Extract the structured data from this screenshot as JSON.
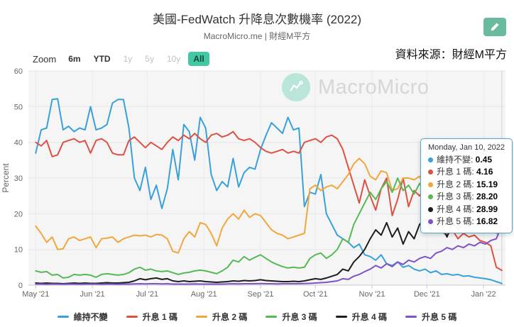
{
  "header": {
    "title": "美國-FedWatch 升降息次數機率 (2022)",
    "subtitle": "MacroMicro.me | 財經M平方",
    "source_note": "資料來源：財經M平方"
  },
  "toolbar": {
    "zoom_label": "Zoom",
    "ranges": [
      {
        "label": "6m",
        "state": "enabled"
      },
      {
        "label": "YTD",
        "state": "enabled"
      },
      {
        "label": "1y",
        "state": "disabled"
      },
      {
        "label": "5y",
        "state": "disabled"
      },
      {
        "label": "10y",
        "state": "disabled"
      },
      {
        "label": "All",
        "state": "selected"
      }
    ]
  },
  "watermark": {
    "text": "MacroMicro"
  },
  "tooltip": {
    "date": "Monday, Jan 10, 2022",
    "rows": [
      {
        "series": "維持不變",
        "value": "0.45"
      },
      {
        "series": "升息 1 碼",
        "value": "4.16"
      },
      {
        "series": "升息 2 碼",
        "value": "15.19"
      },
      {
        "series": "升息 3 碼",
        "value": "28.20"
      },
      {
        "series": "升息 4 碼",
        "value": "28.99"
      },
      {
        "series": "升息 5 碼",
        "value": "16.82"
      }
    ]
  },
  "colors": {
    "accent_teal": "#42c9a4",
    "edit_button": "#68bb9c",
    "tooltip_border": "#55a6cc",
    "plot_background": "#f5f5f6",
    "gridline": "#e6e6e8"
  },
  "chart_data": {
    "type": "line",
    "title": "美國-FedWatch 升降息次數機率 (2022)",
    "ylabel": "Percent",
    "ylim": [
      0,
      60
    ],
    "yticks": [
      0,
      10,
      20,
      30,
      40,
      50,
      60
    ],
    "x_start": "2021-05-01",
    "x_step_days": 3,
    "xlim": [
      -4,
      257
    ],
    "crosshair_day": 255,
    "grid": true,
    "legend_position": "bottom",
    "xticks": {
      "days": [
        0,
        31,
        61,
        92,
        123,
        153,
        184,
        214,
        245
      ],
      "labels": [
        "May '21",
        "Jun '21",
        "Jul '21",
        "Aug '21",
        "Sep '21",
        "Oct '21",
        "Nov '21",
        "Dec '21",
        "Jan '22"
      ]
    },
    "series": [
      {
        "name": "維持不變",
        "color": "#39a1da",
        "values": [
          37,
          43.5,
          44,
          52,
          52.2,
          43.5,
          44.5,
          43,
          44,
          43.5,
          50,
          43.5,
          44,
          45,
          51,
          52,
          52,
          44,
          30,
          26.5,
          33,
          24,
          28,
          21.5,
          27,
          38,
          29.5,
          45,
          43,
          35,
          47,
          44,
          31,
          26.5,
          29,
          27.5,
          35.5,
          27.5,
          31.5,
          33,
          32.5,
          38,
          42,
          45.5,
          44,
          42.5,
          47,
          43.5,
          44,
          22,
          26,
          25.5,
          31,
          20,
          17,
          14,
          13,
          12,
          10.5,
          11.5,
          8.5,
          8,
          7,
          8.5,
          6,
          5.5,
          6.5,
          5,
          5.5,
          4.5,
          4,
          4.5,
          3.5,
          4,
          3,
          3.2,
          2.8,
          3,
          2.5,
          2.6,
          2.2,
          2,
          1.8,
          1.5,
          1,
          0.45
        ]
      },
      {
        "name": "升息 1 碼",
        "color": "#dd5143",
        "values": [
          40,
          39,
          40.5,
          36,
          36.5,
          40,
          40.5,
          41,
          40,
          40.5,
          37,
          40.5,
          41,
          40,
          37,
          36.5,
          36.5,
          40.5,
          41.5,
          40,
          38.5,
          40,
          39,
          38,
          40,
          41.5,
          40.5,
          42,
          41,
          42.5,
          41,
          40,
          42,
          42.5,
          41.5,
          42,
          43,
          41,
          40.5,
          41,
          40,
          38.5,
          37.5,
          37,
          37.5,
          38,
          37,
          37.5,
          37,
          40,
          40.5,
          41,
          40,
          41.5,
          42,
          41,
          38,
          33,
          28,
          23,
          29.5,
          25,
          21,
          27,
          30,
          19.5,
          24,
          30,
          22,
          26.5,
          25,
          27.5,
          22,
          18,
          15,
          14,
          15.5,
          13,
          14.5,
          13.5,
          14,
          12.5,
          12,
          11,
          5,
          4.16
        ]
      },
      {
        "name": "升息 2 碼",
        "color": "#f0a73d",
        "values": [
          16.5,
          14.5,
          12,
          13.5,
          10,
          10.2,
          13,
          13.5,
          12.5,
          13,
          13.5,
          10.5,
          13,
          13.2,
          13.5,
          12,
          13,
          13.5,
          14,
          13.8,
          14,
          13.5,
          14.2,
          14,
          13,
          9.5,
          9,
          13,
          15,
          13.5,
          17.5,
          17,
          14.5,
          11,
          16,
          18.5,
          20,
          18.5,
          21,
          19,
          20,
          19.5,
          17.5,
          15.5,
          14.5,
          14,
          13,
          13.5,
          14,
          14.5,
          27,
          28,
          26.5,
          27.5,
          28,
          27,
          29,
          31,
          34,
          35.5,
          34,
          30.5,
          29.5,
          32,
          31.5,
          26.5,
          27,
          30,
          30,
          29.5,
          30.5,
          28,
          29,
          27,
          26,
          24.5,
          25,
          23.5,
          24,
          23,
          22,
          21,
          19,
          17.5,
          14.5,
          15.19
        ]
      },
      {
        "name": "升息 3 碼",
        "color": "#57b956",
        "values": [
          4,
          3.6,
          3.8,
          2.8,
          3,
          2,
          2.2,
          3,
          2.8,
          3,
          2.8,
          2.2,
          3,
          3.2,
          3,
          2.8,
          3,
          3.5,
          4.5,
          5,
          4.2,
          4.5,
          4,
          3.8,
          4,
          3.5,
          3,
          3.4,
          3.6,
          4,
          4.2,
          4,
          3.6,
          3.2,
          4,
          5,
          7,
          6.5,
          8,
          7,
          7.8,
          8.5,
          7.5,
          6.5,
          5.8,
          5.2,
          4.8,
          5,
          4.8,
          5,
          7.5,
          8.5,
          9,
          7.5,
          8.5,
          10,
          13,
          12,
          17,
          20,
          23,
          26,
          24,
          27,
          29,
          26,
          30,
          26.5,
          28,
          25.5,
          28.5,
          26,
          28,
          27,
          25.5,
          27.5,
          26.5,
          27.5,
          26,
          28,
          27,
          28,
          27,
          28.5,
          29,
          28.2
        ]
      },
      {
        "name": "升息 4 碼",
        "color": "#1d1d1f",
        "values": [
          0.6,
          0.5,
          0.6,
          0.5,
          0.5,
          0.4,
          0.5,
          0.6,
          0.5,
          0.6,
          0.5,
          0.5,
          0.6,
          0.7,
          0.6,
          0.6,
          0.7,
          0.8,
          1.2,
          1.8,
          1.5,
          1.8,
          2,
          1.6,
          1.8,
          1.2,
          1,
          1.2,
          1,
          1.1,
          1.2,
          1,
          0.9,
          0.8,
          0.9,
          1,
          1.2,
          1.1,
          1.3,
          1.2,
          1.3,
          1.5,
          1.3,
          1.2,
          1.1,
          1,
          1,
          1.1,
          1,
          1.2,
          1.5,
          1.8,
          1.6,
          2,
          2.5,
          3,
          4.5,
          4,
          6.5,
          8,
          10,
          13,
          15.5,
          14,
          17.5,
          13.5,
          16,
          11.5,
          15,
          13,
          17,
          18.5,
          15.5,
          19,
          17,
          13.5,
          17.5,
          16,
          18,
          16.5,
          18,
          19.5,
          21,
          23,
          29.5,
          28.99
        ]
      },
      {
        "name": "升息 5 碼",
        "color": "#7d54c5",
        "values": [
          0.3,
          0.3,
          0.25,
          0.3,
          0.3,
          0.25,
          0.3,
          0.3,
          0.25,
          0.3,
          0.3,
          0.3,
          0.25,
          0.3,
          0.3,
          0.25,
          0.3,
          0.3,
          0.35,
          0.4,
          0.35,
          0.4,
          0.4,
          0.35,
          0.4,
          0.3,
          0.3,
          0.3,
          0.3,
          0.35,
          0.3,
          0.3,
          0.3,
          0.3,
          0.3,
          0.35,
          0.4,
          0.35,
          0.4,
          0.4,
          0.4,
          0.45,
          0.4,
          0.4,
          0.35,
          0.4,
          0.4,
          0.4,
          0.4,
          0.45,
          0.5,
          0.6,
          0.7,
          0.8,
          1,
          1.2,
          1.8,
          1.6,
          2.5,
          3,
          3.8,
          4.5,
          5.5,
          4.8,
          6,
          5.2,
          6.5,
          5.8,
          7,
          6.5,
          7.5,
          8,
          7.5,
          9,
          9.5,
          10.5,
          10,
          11,
          10.5,
          11.5,
          11,
          12,
          11.5,
          12.5,
          13,
          16.82
        ]
      }
    ]
  }
}
